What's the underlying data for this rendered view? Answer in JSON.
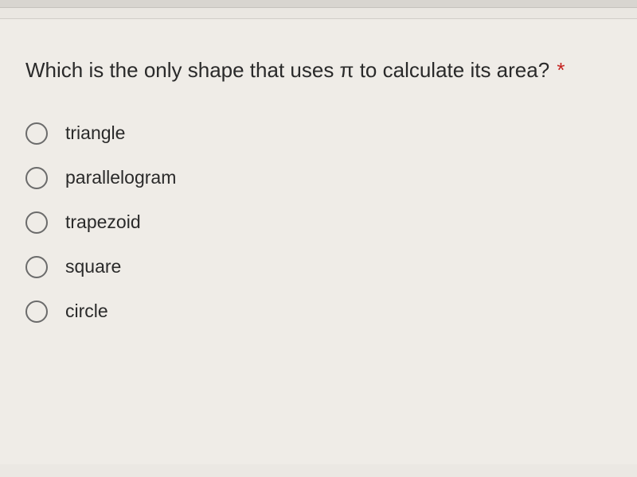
{
  "question": {
    "text": "Which is the only shape that uses π to calculate its area?",
    "required_marker": "*",
    "required_color": "#c5221f",
    "text_color": "#2a2a2a",
    "fontsize": 26
  },
  "options": [
    {
      "label": "triangle"
    },
    {
      "label": "parallelogram"
    },
    {
      "label": "trapezoid"
    },
    {
      "label": "square"
    },
    {
      "label": "circle"
    }
  ],
  "styling": {
    "background_color": "#efece7",
    "body_background": "#ebe8e3",
    "radio_border_color": "#6b6b6b",
    "radio_size": 28,
    "option_fontsize": 23,
    "option_gap": 28
  }
}
